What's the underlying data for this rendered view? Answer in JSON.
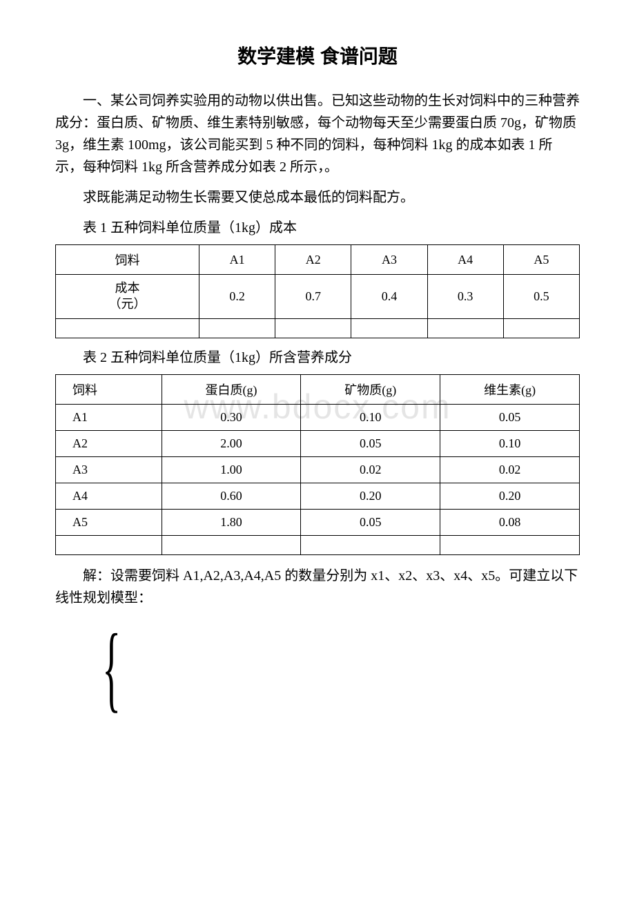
{
  "title": "数学建模 食谱问题",
  "intro": "一、某公司饲养实验用的动物以供出售。已知这些动物的生长对饲料中的三种营养成分：蛋白质、矿物质、维生素特别敏感，每个动物每天至少需要蛋白质 70g，矿物质 3g，维生素 100mg，该公司能买到 5 种不同的饲料，每种饲料 1kg 的成本如表 1 所示，每种饲料 1kg 所含营养成分如表 2 所示，。",
  "question": "求既能满足动物生长需要又使总成本最低的饲料配方。",
  "table1": {
    "caption": "表 1 五种饲料单位质量（1kg）成本",
    "header": [
      "饲料",
      "A1",
      "A2",
      "A3",
      "A4",
      "A5"
    ],
    "cost_label_line1": "成本",
    "cost_label_line2": "（元）",
    "costs": [
      "0.2",
      "0.7",
      "0.4",
      "0.3",
      "0.5"
    ]
  },
  "table2": {
    "caption": "表 2 五种饲料单位质量（1kg）所含营养成分",
    "header": [
      "饲料",
      "蛋白质(g)",
      "矿物质(g)",
      "维生素(g)"
    ],
    "rows": [
      {
        "feed": "A1",
        "protein": "0.30",
        "mineral": "0.10",
        "vitamin": "0.05"
      },
      {
        "feed": "A2",
        "protein": "2.00",
        "mineral": "0.05",
        "vitamin": "0.10"
      },
      {
        "feed": "A3",
        "protein": "1.00",
        "mineral": "0.02",
        "vitamin": "0.02"
      },
      {
        "feed": "A4",
        "protein": "0.60",
        "mineral": "0.20",
        "vitamin": "0.20"
      },
      {
        "feed": "A5",
        "protein": "1.80",
        "mineral": "0.05",
        "vitamin": "0.08"
      }
    ]
  },
  "solution": "解：设需要饲料 A1,A2,A3,A4,A5 的数量分别为 x1、x2、x3、x4、x5。可建立以下线性规划模型：",
  "watermark": "www.bdocx.com",
  "brace": "{",
  "colors": {
    "background": "#ffffff",
    "text": "#000000",
    "border": "#000000",
    "watermark": "#e5e5e5"
  }
}
